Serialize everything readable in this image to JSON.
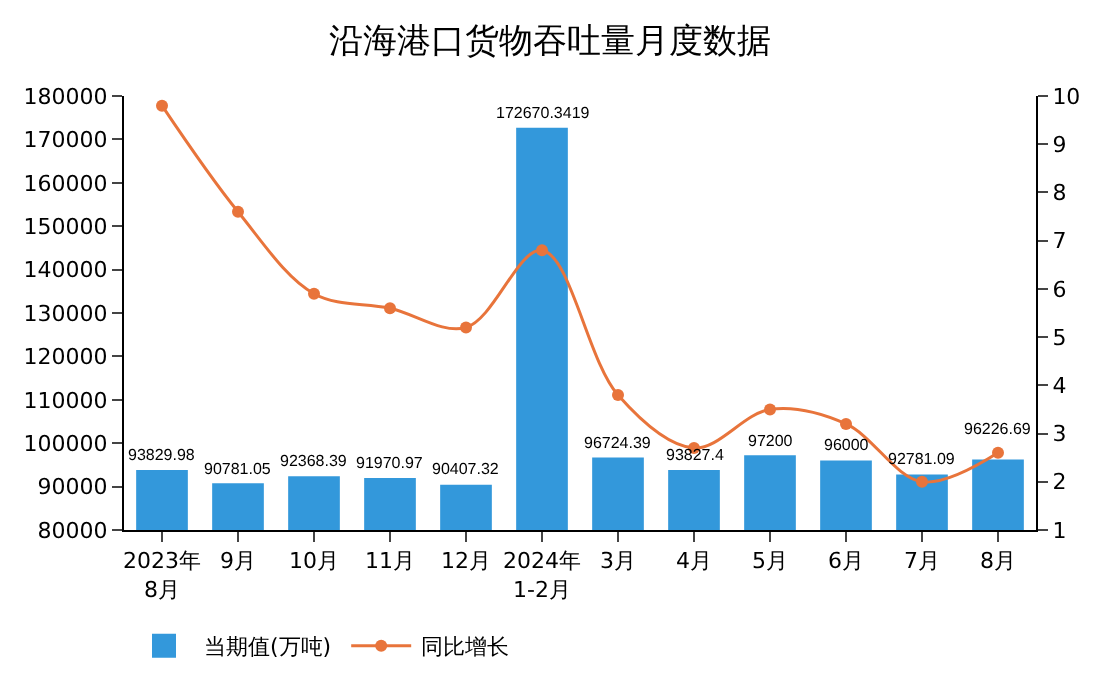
{
  "chart_data": {
    "type": "bar",
    "title": "沿海港口货物吞吐量月度数据",
    "categories": [
      "2023年\n8月",
      "9月",
      "10月",
      "11月",
      "12月",
      "2024年\n1-2月",
      "3月",
      "4月",
      "5月",
      "6月",
      "7月",
      "8月"
    ],
    "series": [
      {
        "name": "当期值(万吨)",
        "color": "#3398db",
        "values": [
          93829.98,
          90781.05,
          92368.39,
          91970.97,
          90407.32,
          172670.3419,
          96724.39,
          93827.4,
          97200,
          96000,
          92781.09,
          96226.69
        ],
        "data_labels": true
      },
      {
        "name": "同比增长",
        "type": "line",
        "axis": "y2",
        "color": "#e8743b",
        "marker": "circle",
        "values": [
          9.8,
          7.6,
          5.9,
          5.6,
          5.2,
          6.8,
          3.8,
          2.7,
          3.5,
          3.2,
          2.0,
          2.6
        ]
      }
    ],
    "ylim": [
      80000,
      180000
    ],
    "yticks": [
      80000,
      90000,
      100000,
      110000,
      120000,
      130000,
      140000,
      150000,
      160000,
      170000,
      180000
    ],
    "y2lim": [
      1,
      10
    ],
    "y2ticks": [
      1,
      2,
      3,
      4,
      5,
      6,
      7,
      8,
      9,
      10
    ],
    "grid": false,
    "legend": "bottom left"
  }
}
